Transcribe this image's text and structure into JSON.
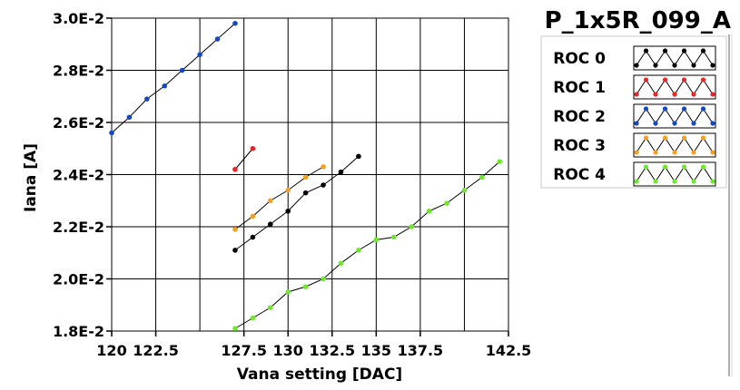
{
  "chart_data": {
    "type": "line",
    "title": "P_1x5R_099_A",
    "xlabel": "Vana setting [DAC]",
    "ylabel": "Iana [A]",
    "xlim": [
      120,
      142.5
    ],
    "ylim": [
      0.018,
      0.03
    ],
    "x_ticks": [
      120,
      122.5,
      127.5,
      130,
      132.5,
      135,
      137.5,
      142.5
    ],
    "x_tick_labels": [
      "120",
      "122.5",
      "127.5",
      "130",
      "132.5",
      "135",
      "137.5",
      "142.5"
    ],
    "x_grid": [
      120,
      122.5,
      125,
      127.5,
      130,
      132.5,
      135,
      137.5,
      140,
      142.5
    ],
    "y_ticks": [
      0.018,
      0.02,
      0.022,
      0.024,
      0.026,
      0.028,
      0.03
    ],
    "y_tick_labels": [
      "1.8E-2",
      "2.0E-2",
      "2.2E-2",
      "2.4E-2",
      "2.6E-2",
      "2.8E-2",
      "3.0E-2"
    ],
    "grid": true,
    "legend_position": "right",
    "series": [
      {
        "name": "ROC 0",
        "color": "#000000",
        "x": [
          127,
          128,
          129,
          130,
          131,
          132,
          133,
          134
        ],
        "y": [
          0.0211,
          0.0216,
          0.0221,
          0.0226,
          0.0233,
          0.0236,
          0.0241,
          0.0247
        ]
      },
      {
        "name": "ROC 1",
        "color": "#e8262c",
        "x": [
          127,
          128
        ],
        "y": [
          0.0242,
          0.025
        ]
      },
      {
        "name": "ROC 2",
        "color": "#1448c4",
        "x": [
          120,
          121,
          122,
          123,
          124,
          125,
          126,
          127
        ],
        "y": [
          0.0256,
          0.0262,
          0.0269,
          0.0274,
          0.028,
          0.0286,
          0.0292,
          0.0298
        ]
      },
      {
        "name": "ROC 3",
        "color": "#f5a020",
        "x": [
          127,
          128,
          129,
          130,
          131,
          132
        ],
        "y": [
          0.0219,
          0.0224,
          0.023,
          0.0234,
          0.0239,
          0.0243
        ]
      },
      {
        "name": "ROC 4",
        "color": "#6ee82c",
        "x": [
          127,
          128,
          129,
          130,
          131,
          132,
          133,
          134,
          135,
          136,
          137,
          138,
          139,
          140,
          141,
          142
        ],
        "y": [
          0.0181,
          0.0185,
          0.0189,
          0.0195,
          0.0197,
          0.02,
          0.0206,
          0.0211,
          0.0215,
          0.0216,
          0.022,
          0.0226,
          0.0229,
          0.0234,
          0.0239,
          0.0245
        ]
      }
    ]
  }
}
